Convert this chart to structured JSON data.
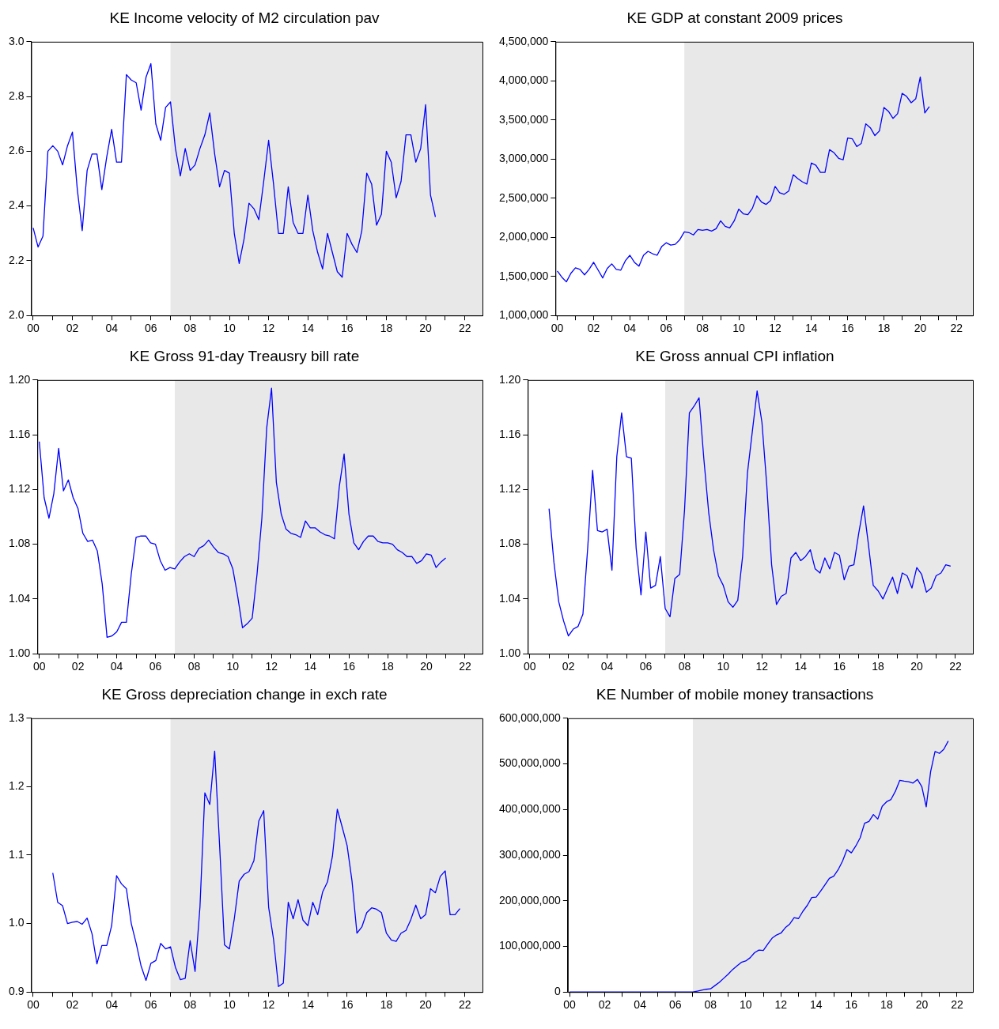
{
  "chart_data": [
    {
      "type": "line",
      "title": "KE Income velocity of M2 circulation pav",
      "color": "#0000ff",
      "grid": false,
      "x": [
        2000,
        2000.25,
        2000.5,
        2000.75,
        2001,
        2001.25,
        2001.5,
        2001.75,
        2002,
        2002.25,
        2002.5,
        2002.75,
        2003,
        2003.25,
        2003.5,
        2003.75,
        2004,
        2004.25,
        2004.5,
        2004.75,
        2005,
        2005.25,
        2005.5,
        2005.75,
        2006,
        2006.25,
        2006.5,
        2006.75,
        2007,
        2007.25,
        2007.5,
        2007.75,
        2008,
        2008.25,
        2008.5,
        2008.75,
        2009,
        2009.25,
        2009.5,
        2009.75,
        2010,
        2010.25,
        2010.5,
        2010.75,
        2011,
        2011.25,
        2011.5,
        2011.75,
        2012,
        2012.25,
        2012.5,
        2012.75,
        2013,
        2013.25,
        2013.5,
        2013.75,
        2014,
        2014.25,
        2014.5,
        2014.75,
        2015,
        2015.25,
        2015.5,
        2015.75,
        2016,
        2016.25,
        2016.5,
        2016.75,
        2017,
        2017.25,
        2017.5,
        2017.75,
        2018,
        2018.25,
        2018.5,
        2018.75,
        2019,
        2019.25,
        2019.5,
        2019.75,
        2020,
        2020.25,
        2020.5
      ],
      "values": [
        2.32,
        2.25,
        2.29,
        2.6,
        2.62,
        2.6,
        2.55,
        2.62,
        2.67,
        2.46,
        2.31,
        2.53,
        2.59,
        2.59,
        2.46,
        2.58,
        2.68,
        2.56,
        2.56,
        2.88,
        2.86,
        2.85,
        2.75,
        2.87,
        2.92,
        2.7,
        2.64,
        2.76,
        2.78,
        2.61,
        2.51,
        2.61,
        2.53,
        2.55,
        2.61,
        2.66,
        2.74,
        2.59,
        2.47,
        2.53,
        2.52,
        2.3,
        2.19,
        2.28,
        2.41,
        2.39,
        2.35,
        2.49,
        2.64,
        2.48,
        2.3,
        2.3,
        2.47,
        2.34,
        2.3,
        2.3,
        2.44,
        2.31,
        2.23,
        2.17,
        2.3,
        2.23,
        2.16,
        2.14,
        2.3,
        2.26,
        2.23,
        2.31,
        2.52,
        2.48,
        2.33,
        2.37,
        2.6,
        2.56,
        2.43,
        2.49,
        2.66,
        2.66,
        2.56,
        2.61,
        2.77,
        2.44,
        2.36
      ],
      "xlim": [
        1999.9,
        2022.9
      ],
      "xticks": [
        {
          "value": 2000,
          "label": "00"
        },
        {
          "value": 2001,
          "label": null
        },
        {
          "value": 2002,
          "label": "02"
        },
        {
          "value": 2003,
          "label": null
        },
        {
          "value": 2004,
          "label": "04"
        },
        {
          "value": 2005,
          "label": null
        },
        {
          "value": 2006,
          "label": "06"
        },
        {
          "value": 2007,
          "label": null
        },
        {
          "value": 2008,
          "label": "08"
        },
        {
          "value": 2009,
          "label": null
        },
        {
          "value": 2010,
          "label": "10"
        },
        {
          "value": 2011,
          "label": null
        },
        {
          "value": 2012,
          "label": "12"
        },
        {
          "value": 2013,
          "label": null
        },
        {
          "value": 2014,
          "label": "14"
        },
        {
          "value": 2015,
          "label": null
        },
        {
          "value": 2016,
          "label": "16"
        },
        {
          "value": 2017,
          "label": null
        },
        {
          "value": 2018,
          "label": "18"
        },
        {
          "value": 2019,
          "label": null
        },
        {
          "value": 2020,
          "label": "20"
        },
        {
          "value": 2021,
          "label": null
        },
        {
          "value": 2022,
          "label": "22"
        }
      ],
      "ylim": [
        2.0,
        3.0
      ],
      "yticks": [
        {
          "value": 2.0,
          "label": "2.0"
        },
        {
          "value": 2.2,
          "label": "2.2"
        },
        {
          "value": 2.4,
          "label": "2.4"
        },
        {
          "value": 2.6,
          "label": "2.6"
        },
        {
          "value": 2.8,
          "label": "2.8"
        },
        {
          "value": 3.0,
          "label": "3.0"
        }
      ],
      "bands": [
        {
          "axis": "x",
          "from": 2007,
          "to": 2022.9,
          "color": "#e8e8e8"
        }
      ]
    },
    {
      "type": "line",
      "title": "KE GDP at constant 2009 prices",
      "color": "#0000ff",
      "grid": false,
      "x": [
        2000,
        2000.25,
        2000.5,
        2000.75,
        2001,
        2001.25,
        2001.5,
        2001.75,
        2002,
        2002.25,
        2002.5,
        2002.75,
        2003,
        2003.25,
        2003.5,
        2003.75,
        2004,
        2004.25,
        2004.5,
        2004.75,
        2005,
        2005.25,
        2005.5,
        2005.75,
        2006,
        2006.25,
        2006.5,
        2006.75,
        2007,
        2007.25,
        2007.5,
        2007.75,
        2008,
        2008.25,
        2008.5,
        2008.75,
        2009,
        2009.25,
        2009.5,
        2009.75,
        2010,
        2010.25,
        2010.5,
        2010.75,
        2011,
        2011.25,
        2011.5,
        2011.75,
        2012,
        2012.25,
        2012.5,
        2012.75,
        2013,
        2013.25,
        2013.5,
        2013.75,
        2014,
        2014.25,
        2014.5,
        2014.75,
        2015,
        2015.25,
        2015.5,
        2015.75,
        2016,
        2016.25,
        2016.5,
        2016.75,
        2017,
        2017.25,
        2017.5,
        2017.75,
        2018,
        2018.25,
        2018.5,
        2018.75,
        2019,
        2019.25,
        2019.5,
        2019.75,
        2020,
        2020.25,
        2020.5
      ],
      "values": [
        1570000,
        1490000,
        1430000,
        1540000,
        1610000,
        1590000,
        1520000,
        1590000,
        1680000,
        1580000,
        1480000,
        1600000,
        1660000,
        1590000,
        1580000,
        1700000,
        1770000,
        1680000,
        1630000,
        1770000,
        1820000,
        1790000,
        1770000,
        1880000,
        1930000,
        1900000,
        1910000,
        1970000,
        2070000,
        2060000,
        2030000,
        2100000,
        2090000,
        2100000,
        2080000,
        2110000,
        2210000,
        2140000,
        2120000,
        2210000,
        2360000,
        2300000,
        2290000,
        2370000,
        2530000,
        2450000,
        2420000,
        2470000,
        2650000,
        2570000,
        2550000,
        2590000,
        2800000,
        2750000,
        2710000,
        2680000,
        2950000,
        2920000,
        2830000,
        2830000,
        3120000,
        3080000,
        3010000,
        2990000,
        3270000,
        3260000,
        3160000,
        3200000,
        3450000,
        3400000,
        3300000,
        3360000,
        3660000,
        3610000,
        3520000,
        3580000,
        3840000,
        3800000,
        3720000,
        3770000,
        4050000,
        3590000,
        3670000
      ],
      "xlim": [
        1999.9,
        2022.9
      ],
      "xticks": [
        {
          "value": 2000,
          "label": "00"
        },
        {
          "value": 2001,
          "label": null
        },
        {
          "value": 2002,
          "label": "02"
        },
        {
          "value": 2003,
          "label": null
        },
        {
          "value": 2004,
          "label": "04"
        },
        {
          "value": 2005,
          "label": null
        },
        {
          "value": 2006,
          "label": "06"
        },
        {
          "value": 2007,
          "label": null
        },
        {
          "value": 2008,
          "label": "08"
        },
        {
          "value": 2009,
          "label": null
        },
        {
          "value": 2010,
          "label": "10"
        },
        {
          "value": 2011,
          "label": null
        },
        {
          "value": 2012,
          "label": "12"
        },
        {
          "value": 2013,
          "label": null
        },
        {
          "value": 2014,
          "label": "14"
        },
        {
          "value": 2015,
          "label": null
        },
        {
          "value": 2016,
          "label": "16"
        },
        {
          "value": 2017,
          "label": null
        },
        {
          "value": 2018,
          "label": "18"
        },
        {
          "value": 2019,
          "label": null
        },
        {
          "value": 2020,
          "label": "20"
        },
        {
          "value": 2021,
          "label": null
        },
        {
          "value": 2022,
          "label": "22"
        }
      ],
      "ylim": [
        1000000,
        4500000
      ],
      "yticks": [
        {
          "value": 1000000,
          "label": "1,000,000"
        },
        {
          "value": 1500000,
          "label": "1,500,000"
        },
        {
          "value": 2000000,
          "label": "2,000,000"
        },
        {
          "value": 2500000,
          "label": "2,500,000"
        },
        {
          "value": 3000000,
          "label": "3,000,000"
        },
        {
          "value": 3500000,
          "label": "3,500,000"
        },
        {
          "value": 4000000,
          "label": "4,000,000"
        },
        {
          "value": 4500000,
          "label": "4,500,000"
        }
      ],
      "bands": [
        {
          "axis": "x",
          "from": 2007,
          "to": 2022.9,
          "color": "#e8e8e8"
        }
      ]
    },
    {
      "type": "line",
      "title": "KE Gross 91-day Treausry bill rate",
      "color": "#0000ff",
      "grid": false,
      "x": [
        2000,
        2000.25,
        2000.5,
        2000.75,
        2001,
        2001.25,
        2001.5,
        2001.75,
        2002,
        2002.25,
        2002.5,
        2002.75,
        2003,
        2003.25,
        2003.5,
        2003.75,
        2004,
        2004.25,
        2004.5,
        2004.75,
        2005,
        2005.25,
        2005.5,
        2005.75,
        2006,
        2006.25,
        2006.5,
        2006.75,
        2007,
        2007.25,
        2007.5,
        2007.75,
        2008,
        2008.25,
        2008.5,
        2008.75,
        2009,
        2009.25,
        2009.5,
        2009.75,
        2010,
        2010.25,
        2010.5,
        2010.75,
        2011,
        2011.25,
        2011.5,
        2011.75,
        2012,
        2012.25,
        2012.5,
        2012.75,
        2013,
        2013.25,
        2013.5,
        2013.75,
        2014,
        2014.25,
        2014.5,
        2014.75,
        2015,
        2015.25,
        2015.5,
        2015.75,
        2016,
        2016.25,
        2016.5,
        2016.75,
        2017,
        2017.25,
        2017.5,
        2017.75,
        2018,
        2018.25,
        2018.5,
        2018.75,
        2019,
        2019.25,
        2019.5,
        2019.75,
        2020,
        2020.25,
        2020.5,
        2020.75,
        2021
      ],
      "values": [
        1.155,
        1.114,
        1.099,
        1.117,
        1.15,
        1.119,
        1.127,
        1.114,
        1.106,
        1.088,
        1.082,
        1.083,
        1.075,
        1.051,
        1.012,
        1.013,
        1.016,
        1.023,
        1.023,
        1.058,
        1.085,
        1.086,
        1.086,
        1.081,
        1.08,
        1.068,
        1.061,
        1.063,
        1.062,
        1.067,
        1.071,
        1.073,
        1.071,
        1.077,
        1.079,
        1.083,
        1.078,
        1.074,
        1.073,
        1.071,
        1.062,
        1.042,
        1.019,
        1.022,
        1.026,
        1.058,
        1.099,
        1.165,
        1.194,
        1.125,
        1.102,
        1.091,
        1.088,
        1.087,
        1.085,
        1.097,
        1.092,
        1.092,
        1.089,
        1.087,
        1.086,
        1.084,
        1.122,
        1.146,
        1.102,
        1.081,
        1.076,
        1.082,
        1.086,
        1.086,
        1.082,
        1.081,
        1.081,
        1.08,
        1.076,
        1.074,
        1.071,
        1.071,
        1.066,
        1.068,
        1.073,
        1.072,
        1.063,
        1.067,
        1.07
      ],
      "xlim": [
        1999.9,
        2022.9
      ],
      "xticks": [
        {
          "value": 2000,
          "label": "00"
        },
        {
          "value": 2001,
          "label": null
        },
        {
          "value": 2002,
          "label": "02"
        },
        {
          "value": 2003,
          "label": null
        },
        {
          "value": 2004,
          "label": "04"
        },
        {
          "value": 2005,
          "label": null
        },
        {
          "value": 2006,
          "label": "06"
        },
        {
          "value": 2007,
          "label": null
        },
        {
          "value": 2008,
          "label": "08"
        },
        {
          "value": 2009,
          "label": null
        },
        {
          "value": 2010,
          "label": "10"
        },
        {
          "value": 2011,
          "label": null
        },
        {
          "value": 2012,
          "label": "12"
        },
        {
          "value": 2013,
          "label": null
        },
        {
          "value": 2014,
          "label": "14"
        },
        {
          "value": 2015,
          "label": null
        },
        {
          "value": 2016,
          "label": "16"
        },
        {
          "value": 2017,
          "label": null
        },
        {
          "value": 2018,
          "label": "18"
        },
        {
          "value": 2019,
          "label": null
        },
        {
          "value": 2020,
          "label": "20"
        },
        {
          "value": 2021,
          "label": null
        },
        {
          "value": 2022,
          "label": "22"
        }
      ],
      "ylim": [
        1.0,
        1.2
      ],
      "yticks": [
        {
          "value": 1.0,
          "label": "1.00"
        },
        {
          "value": 1.04,
          "label": "1.04"
        },
        {
          "value": 1.08,
          "label": "1.08"
        },
        {
          "value": 1.12,
          "label": "1.12"
        },
        {
          "value": 1.16,
          "label": "1.16"
        },
        {
          "value": 1.2,
          "label": "1.20"
        }
      ],
      "bands": [
        {
          "axis": "x",
          "from": 2007,
          "to": 2022.9,
          "color": "#e8e8e8"
        }
      ]
    },
    {
      "type": "line",
      "title": "KE Gross annual CPI inflation",
      "color": "#0000ff",
      "grid": false,
      "x": [
        2001,
        2001.25,
        2001.5,
        2001.75,
        2002,
        2002.25,
        2002.5,
        2002.75,
        2003,
        2003.25,
        2003.5,
        2003.75,
        2004,
        2004.25,
        2004.5,
        2004.75,
        2005,
        2005.25,
        2005.5,
        2005.75,
        2006,
        2006.25,
        2006.5,
        2006.75,
        2007,
        2007.25,
        2007.5,
        2007.75,
        2008,
        2008.25,
        2008.5,
        2008.75,
        2009,
        2009.25,
        2009.5,
        2009.75,
        2010,
        2010.25,
        2010.5,
        2010.75,
        2011,
        2011.25,
        2011.5,
        2011.75,
        2012,
        2012.25,
        2012.5,
        2012.75,
        2013,
        2013.25,
        2013.5,
        2013.75,
        2014,
        2014.25,
        2014.5,
        2014.75,
        2015,
        2015.25,
        2015.5,
        2015.75,
        2016,
        2016.25,
        2016.5,
        2016.75,
        2017,
        2017.25,
        2017.5,
        2017.75,
        2018,
        2018.25,
        2018.5,
        2018.75,
        2019,
        2019.25,
        2019.5,
        2019.75,
        2020,
        2020.25,
        2020.5,
        2020.75,
        2021,
        2021.25,
        2021.5,
        2021.75
      ],
      "values": [
        1.106,
        1.067,
        1.038,
        1.024,
        1.013,
        1.018,
        1.02,
        1.029,
        1.078,
        1.134,
        1.09,
        1.089,
        1.091,
        1.061,
        1.144,
        1.176,
        1.144,
        1.143,
        1.077,
        1.043,
        1.089,
        1.048,
        1.05,
        1.071,
        1.033,
        1.027,
        1.055,
        1.058,
        1.105,
        1.176,
        1.181,
        1.187,
        1.142,
        1.103,
        1.076,
        1.057,
        1.05,
        1.038,
        1.034,
        1.039,
        1.071,
        1.132,
        1.162,
        1.192,
        1.169,
        1.123,
        1.065,
        1.036,
        1.042,
        1.044,
        1.07,
        1.074,
        1.068,
        1.071,
        1.076,
        1.062,
        1.059,
        1.07,
        1.062,
        1.074,
        1.072,
        1.054,
        1.064,
        1.065,
        1.088,
        1.108,
        1.08,
        1.05,
        1.046,
        1.04,
        1.048,
        1.056,
        1.044,
        1.059,
        1.057,
        1.048,
        1.063,
        1.058,
        1.045,
        1.048,
        1.057,
        1.059,
        1.065,
        1.064
      ],
      "xlim": [
        1999.9,
        2022.9
      ],
      "xticks": [
        {
          "value": 2000,
          "label": "00"
        },
        {
          "value": 2001,
          "label": null
        },
        {
          "value": 2002,
          "label": "02"
        },
        {
          "value": 2003,
          "label": null
        },
        {
          "value": 2004,
          "label": "04"
        },
        {
          "value": 2005,
          "label": null
        },
        {
          "value": 2006,
          "label": "06"
        },
        {
          "value": 2007,
          "label": null
        },
        {
          "value": 2008,
          "label": "08"
        },
        {
          "value": 2009,
          "label": null
        },
        {
          "value": 2010,
          "label": "10"
        },
        {
          "value": 2011,
          "label": null
        },
        {
          "value": 2012,
          "label": "12"
        },
        {
          "value": 2013,
          "label": null
        },
        {
          "value": 2014,
          "label": "14"
        },
        {
          "value": 2015,
          "label": null
        },
        {
          "value": 2016,
          "label": "16"
        },
        {
          "value": 2017,
          "label": null
        },
        {
          "value": 2018,
          "label": "18"
        },
        {
          "value": 2019,
          "label": null
        },
        {
          "value": 2020,
          "label": "20"
        },
        {
          "value": 2021,
          "label": null
        },
        {
          "value": 2022,
          "label": "22"
        }
      ],
      "ylim": [
        1.0,
        1.2
      ],
      "yticks": [
        {
          "value": 1.0,
          "label": "1.00"
        },
        {
          "value": 1.04,
          "label": "1.04"
        },
        {
          "value": 1.08,
          "label": "1.08"
        },
        {
          "value": 1.12,
          "label": "1.12"
        },
        {
          "value": 1.16,
          "label": "1.16"
        },
        {
          "value": 1.2,
          "label": "1.20"
        }
      ],
      "bands": [
        {
          "axis": "x",
          "from": 2007,
          "to": 2022.9,
          "color": "#e8e8e8"
        }
      ]
    },
    {
      "type": "line",
      "title": "KE Gross depreciation change in exch rate",
      "color": "#0000ff",
      "grid": false,
      "x": [
        2001,
        2001.25,
        2001.5,
        2001.75,
        2002,
        2002.25,
        2002.5,
        2002.75,
        2003,
        2003.25,
        2003.5,
        2003.75,
        2004,
        2004.25,
        2004.5,
        2004.75,
        2005,
        2005.25,
        2005.5,
        2005.75,
        2006,
        2006.25,
        2006.5,
        2006.75,
        2007,
        2007.25,
        2007.5,
        2007.75,
        2008,
        2008.25,
        2008.5,
        2008.75,
        2009,
        2009.25,
        2009.5,
        2009.75,
        2010,
        2010.25,
        2010.5,
        2010.75,
        2011,
        2011.25,
        2011.5,
        2011.75,
        2012,
        2012.25,
        2012.5,
        2012.75,
        2013,
        2013.25,
        2013.5,
        2013.75,
        2014,
        2014.25,
        2014.5,
        2014.75,
        2015,
        2015.25,
        2015.5,
        2015.75,
        2016,
        2016.25,
        2016.5,
        2016.75,
        2017,
        2017.25,
        2017.5,
        2017.75,
        2018,
        2018.25,
        2018.5,
        2018.75,
        2019,
        2019.25,
        2019.5,
        2019.75,
        2020,
        2020.25,
        2020.5,
        2020.75,
        2021,
        2021.25,
        2021.5,
        2021.75
      ],
      "values": [
        1.074,
        1.031,
        1.026,
        1.0,
        1.002,
        1.003,
        0.999,
        1.008,
        0.985,
        0.941,
        0.968,
        0.968,
        0.997,
        1.07,
        1.058,
        1.051,
        1.0,
        0.971,
        0.938,
        0.917,
        0.942,
        0.946,
        0.971,
        0.963,
        0.966,
        0.936,
        0.918,
        0.92,
        0.975,
        0.93,
        1.024,
        1.191,
        1.174,
        1.252,
        1.115,
        0.969,
        0.963,
        1.007,
        1.062,
        1.072,
        1.076,
        1.092,
        1.15,
        1.165,
        1.024,
        0.977,
        0.908,
        0.913,
        1.031,
        1.007,
        1.035,
        1.005,
        0.997,
        1.031,
        1.013,
        1.046,
        1.061,
        1.098,
        1.167,
        1.141,
        1.114,
        1.062,
        0.986,
        0.995,
        1.016,
        1.023,
        1.021,
        1.016,
        0.986,
        0.976,
        0.974,
        0.986,
        0.99,
        1.006,
        1.027,
        1.007,
        1.013,
        1.051,
        1.045,
        1.069,
        1.077,
        1.013,
        1.013,
        1.022
      ],
      "xlim": [
        1999.9,
        2022.9
      ],
      "xticks": [
        {
          "value": 2000,
          "label": "00"
        },
        {
          "value": 2001,
          "label": null
        },
        {
          "value": 2002,
          "label": "02"
        },
        {
          "value": 2003,
          "label": null
        },
        {
          "value": 2004,
          "label": "04"
        },
        {
          "value": 2005,
          "label": null
        },
        {
          "value": 2006,
          "label": "06"
        },
        {
          "value": 2007,
          "label": null
        },
        {
          "value": 2008,
          "label": "08"
        },
        {
          "value": 2009,
          "label": null
        },
        {
          "value": 2010,
          "label": "10"
        },
        {
          "value": 2011,
          "label": null
        },
        {
          "value": 2012,
          "label": "12"
        },
        {
          "value": 2013,
          "label": null
        },
        {
          "value": 2014,
          "label": "14"
        },
        {
          "value": 2015,
          "label": null
        },
        {
          "value": 2016,
          "label": "16"
        },
        {
          "value": 2017,
          "label": null
        },
        {
          "value": 2018,
          "label": "18"
        },
        {
          "value": 2019,
          "label": null
        },
        {
          "value": 2020,
          "label": "20"
        },
        {
          "value": 2021,
          "label": null
        },
        {
          "value": 2022,
          "label": "22"
        }
      ],
      "ylim": [
        0.9,
        1.3
      ],
      "yticks": [
        {
          "value": 0.9,
          "label": "0.9"
        },
        {
          "value": 1.0,
          "label": "1.0"
        },
        {
          "value": 1.1,
          "label": "1.1"
        },
        {
          "value": 1.2,
          "label": "1.2"
        },
        {
          "value": 1.3,
          "label": "1.3"
        }
      ],
      "bands": [
        {
          "axis": "x",
          "from": 2007,
          "to": 2022.9,
          "color": "#e8e8e8"
        }
      ]
    },
    {
      "type": "line",
      "title": "KE Number of mobile money transactions",
      "color": "#0000ff",
      "grid": false,
      "x": [
        2000,
        2000.25,
        2000.5,
        2000.75,
        2001,
        2001.25,
        2001.5,
        2001.75,
        2002,
        2002.25,
        2002.5,
        2002.75,
        2003,
        2003.25,
        2003.5,
        2003.75,
        2004,
        2004.25,
        2004.5,
        2004.75,
        2005,
        2005.25,
        2005.5,
        2005.75,
        2006,
        2006.25,
        2006.5,
        2006.75,
        2007,
        2007.25,
        2007.5,
        2007.75,
        2008,
        2008.25,
        2008.5,
        2008.75,
        2009,
        2009.25,
        2009.5,
        2009.75,
        2010,
        2010.25,
        2010.5,
        2010.75,
        2011,
        2011.25,
        2011.5,
        2011.75,
        2012,
        2012.25,
        2012.5,
        2012.75,
        2013,
        2013.25,
        2013.5,
        2013.75,
        2014,
        2014.25,
        2014.5,
        2014.75,
        2015,
        2015.25,
        2015.5,
        2015.75,
        2016,
        2016.25,
        2016.5,
        2016.75,
        2017,
        2017.25,
        2017.5,
        2017.75,
        2018,
        2018.25,
        2018.5,
        2018.75,
        2019,
        2019.25,
        2019.5,
        2019.75,
        2020,
        2020.25,
        2020.5,
        2020.75,
        2021,
        2021.25,
        2021.5
      ],
      "values": [
        0,
        0,
        0,
        0,
        0,
        0,
        0,
        0,
        0,
        0,
        0,
        0,
        0,
        0,
        0,
        0,
        0,
        0,
        0,
        0,
        0,
        0,
        0,
        0,
        0,
        0,
        0,
        0,
        0,
        2000000,
        4000000,
        6000000,
        7000000,
        14000000,
        21000000,
        30000000,
        39000000,
        49000000,
        57000000,
        65000000,
        68000000,
        75000000,
        86000000,
        92000000,
        91000000,
        105000000,
        118000000,
        125000000,
        129000000,
        141000000,
        149000000,
        163000000,
        161000000,
        177000000,
        190000000,
        207000000,
        208000000,
        221000000,
        235000000,
        249000000,
        254000000,
        268000000,
        287000000,
        312000000,
        305000000,
        320000000,
        338000000,
        370000000,
        374000000,
        389000000,
        379000000,
        407000000,
        417000000,
        422000000,
        440000000,
        464000000,
        462000000,
        461000000,
        458000000,
        466000000,
        450000000,
        406000000,
        483000000,
        527000000,
        523000000,
        532000000,
        550000000
      ],
      "xlim": [
        1999.9,
        2022.9
      ],
      "xticks": [
        {
          "value": 2000,
          "label": "00"
        },
        {
          "value": 2001,
          "label": null
        },
        {
          "value": 2002,
          "label": "02"
        },
        {
          "value": 2003,
          "label": null
        },
        {
          "value": 2004,
          "label": "04"
        },
        {
          "value": 2005,
          "label": null
        },
        {
          "value": 2006,
          "label": "06"
        },
        {
          "value": 2007,
          "label": null
        },
        {
          "value": 2008,
          "label": "08"
        },
        {
          "value": 2009,
          "label": null
        },
        {
          "value": 2010,
          "label": "10"
        },
        {
          "value": 2011,
          "label": null
        },
        {
          "value": 2012,
          "label": "12"
        },
        {
          "value": 2013,
          "label": null
        },
        {
          "value": 2014,
          "label": "14"
        },
        {
          "value": 2015,
          "label": null
        },
        {
          "value": 2016,
          "label": "16"
        },
        {
          "value": 2017,
          "label": null
        },
        {
          "value": 2018,
          "label": "18"
        },
        {
          "value": 2019,
          "label": null
        },
        {
          "value": 2020,
          "label": "20"
        },
        {
          "value": 2021,
          "label": null
        },
        {
          "value": 2022,
          "label": "22"
        }
      ],
      "ylim": [
        0,
        600000000
      ],
      "yticks": [
        {
          "value": 0,
          "label": "0"
        },
        {
          "value": 100000000,
          "label": "100,000,000"
        },
        {
          "value": 200000000,
          "label": "200,000,000"
        },
        {
          "value": 300000000,
          "label": "300,000,000"
        },
        {
          "value": 400000000,
          "label": "400,000,000"
        },
        {
          "value": 500000000,
          "label": "500,000,000"
        },
        {
          "value": 600000000,
          "label": "600,000,000"
        }
      ],
      "bands": [
        {
          "axis": "x",
          "from": 2007,
          "to": 2022.9,
          "color": "#e8e8e8"
        }
      ]
    }
  ]
}
